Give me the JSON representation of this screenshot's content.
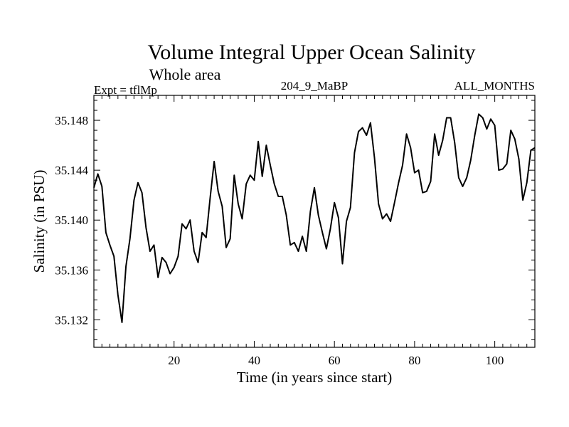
{
  "chart_data": {
    "type": "line",
    "title": "Volume Integral Upper Ocean Salinity",
    "subtitle": "Whole area",
    "left_label": "Expt = tflMp",
    "center_label": "204_9_MaBP",
    "right_label": "ALL_MONTHS",
    "xlabel": "Time (in years since start)",
    "ylabel": "Salinity (in PSU)",
    "xlim": [
      0,
      110
    ],
    "ylim": [
      35.1298,
      35.15
    ],
    "xticks": [
      20,
      40,
      60,
      80,
      100
    ],
    "yticks": [
      35.132,
      35.136,
      35.14,
      35.144,
      35.148
    ],
    "xtick_labels": [
      "20",
      "40",
      "60",
      "80",
      "100"
    ],
    "ytick_labels": [
      "35.132",
      "35.136",
      "35.140",
      "35.144",
      "35.148"
    ],
    "series": [
      {
        "name": "salinity",
        "color": "#000000",
        "x": [
          0,
          1,
          2,
          3,
          4,
          5,
          6,
          7,
          8,
          9,
          10,
          11,
          12,
          13,
          14,
          15,
          16,
          17,
          18,
          19,
          20,
          21,
          22,
          23,
          24,
          25,
          26,
          27,
          28,
          29,
          30,
          31,
          32,
          33,
          34,
          35,
          36,
          37,
          38,
          39,
          40,
          41,
          42,
          43,
          44,
          45,
          46,
          47,
          48,
          49,
          50,
          51,
          52,
          53,
          54,
          55,
          56,
          57,
          58,
          59,
          60,
          61,
          62,
          63,
          64,
          65,
          66,
          67,
          68,
          69,
          70,
          71,
          72,
          73,
          74,
          75,
          76,
          77,
          78,
          79,
          80,
          81,
          82,
          83,
          84,
          85,
          86,
          87,
          88,
          89,
          90,
          91,
          92,
          93,
          94,
          95,
          96,
          97,
          98,
          99,
          100,
          101,
          102,
          103,
          104,
          105,
          106,
          107,
          108,
          109,
          110
        ],
        "values": [
          35.1426,
          35.1437,
          35.1427,
          35.139,
          35.138,
          35.1371,
          35.134,
          35.1318,
          35.1363,
          35.1385,
          35.1416,
          35.143,
          35.1422,
          35.1394,
          35.1375,
          35.138,
          35.1354,
          35.137,
          35.1366,
          35.1357,
          35.1362,
          35.1371,
          35.1397,
          35.1393,
          35.14,
          35.1375,
          35.1366,
          35.139,
          35.1386,
          35.1418,
          35.1447,
          35.1423,
          35.1411,
          35.1378,
          35.1385,
          35.1436,
          35.1413,
          35.1401,
          35.1429,
          35.1436,
          35.1432,
          35.1463,
          35.1435,
          35.146,
          35.1444,
          35.1429,
          35.1419,
          35.1419,
          35.1404,
          35.138,
          35.1382,
          35.1375,
          35.1387,
          35.1375,
          35.1407,
          35.1426,
          35.1404,
          35.139,
          35.1377,
          35.1393,
          35.1414,
          35.1402,
          35.1365,
          35.1399,
          35.141,
          35.1454,
          35.1471,
          35.1474,
          35.1468,
          35.1478,
          35.145,
          35.1413,
          35.1401,
          35.1405,
          35.1399,
          35.1414,
          35.143,
          35.1444,
          35.1469,
          35.1458,
          35.1438,
          35.144,
          35.1422,
          35.1423,
          35.1431,
          35.1469,
          35.1452,
          35.1464,
          35.1482,
          35.1482,
          35.1462,
          35.1434,
          35.1427,
          35.1434,
          35.1448,
          35.1468,
          35.1485,
          35.1482,
          35.1473,
          35.1481,
          35.1476,
          35.144,
          35.1441,
          35.1445,
          35.1472,
          35.1465,
          35.1449,
          35.1416,
          35.143,
          35.1456,
          35.1458
        ]
      }
    ]
  }
}
